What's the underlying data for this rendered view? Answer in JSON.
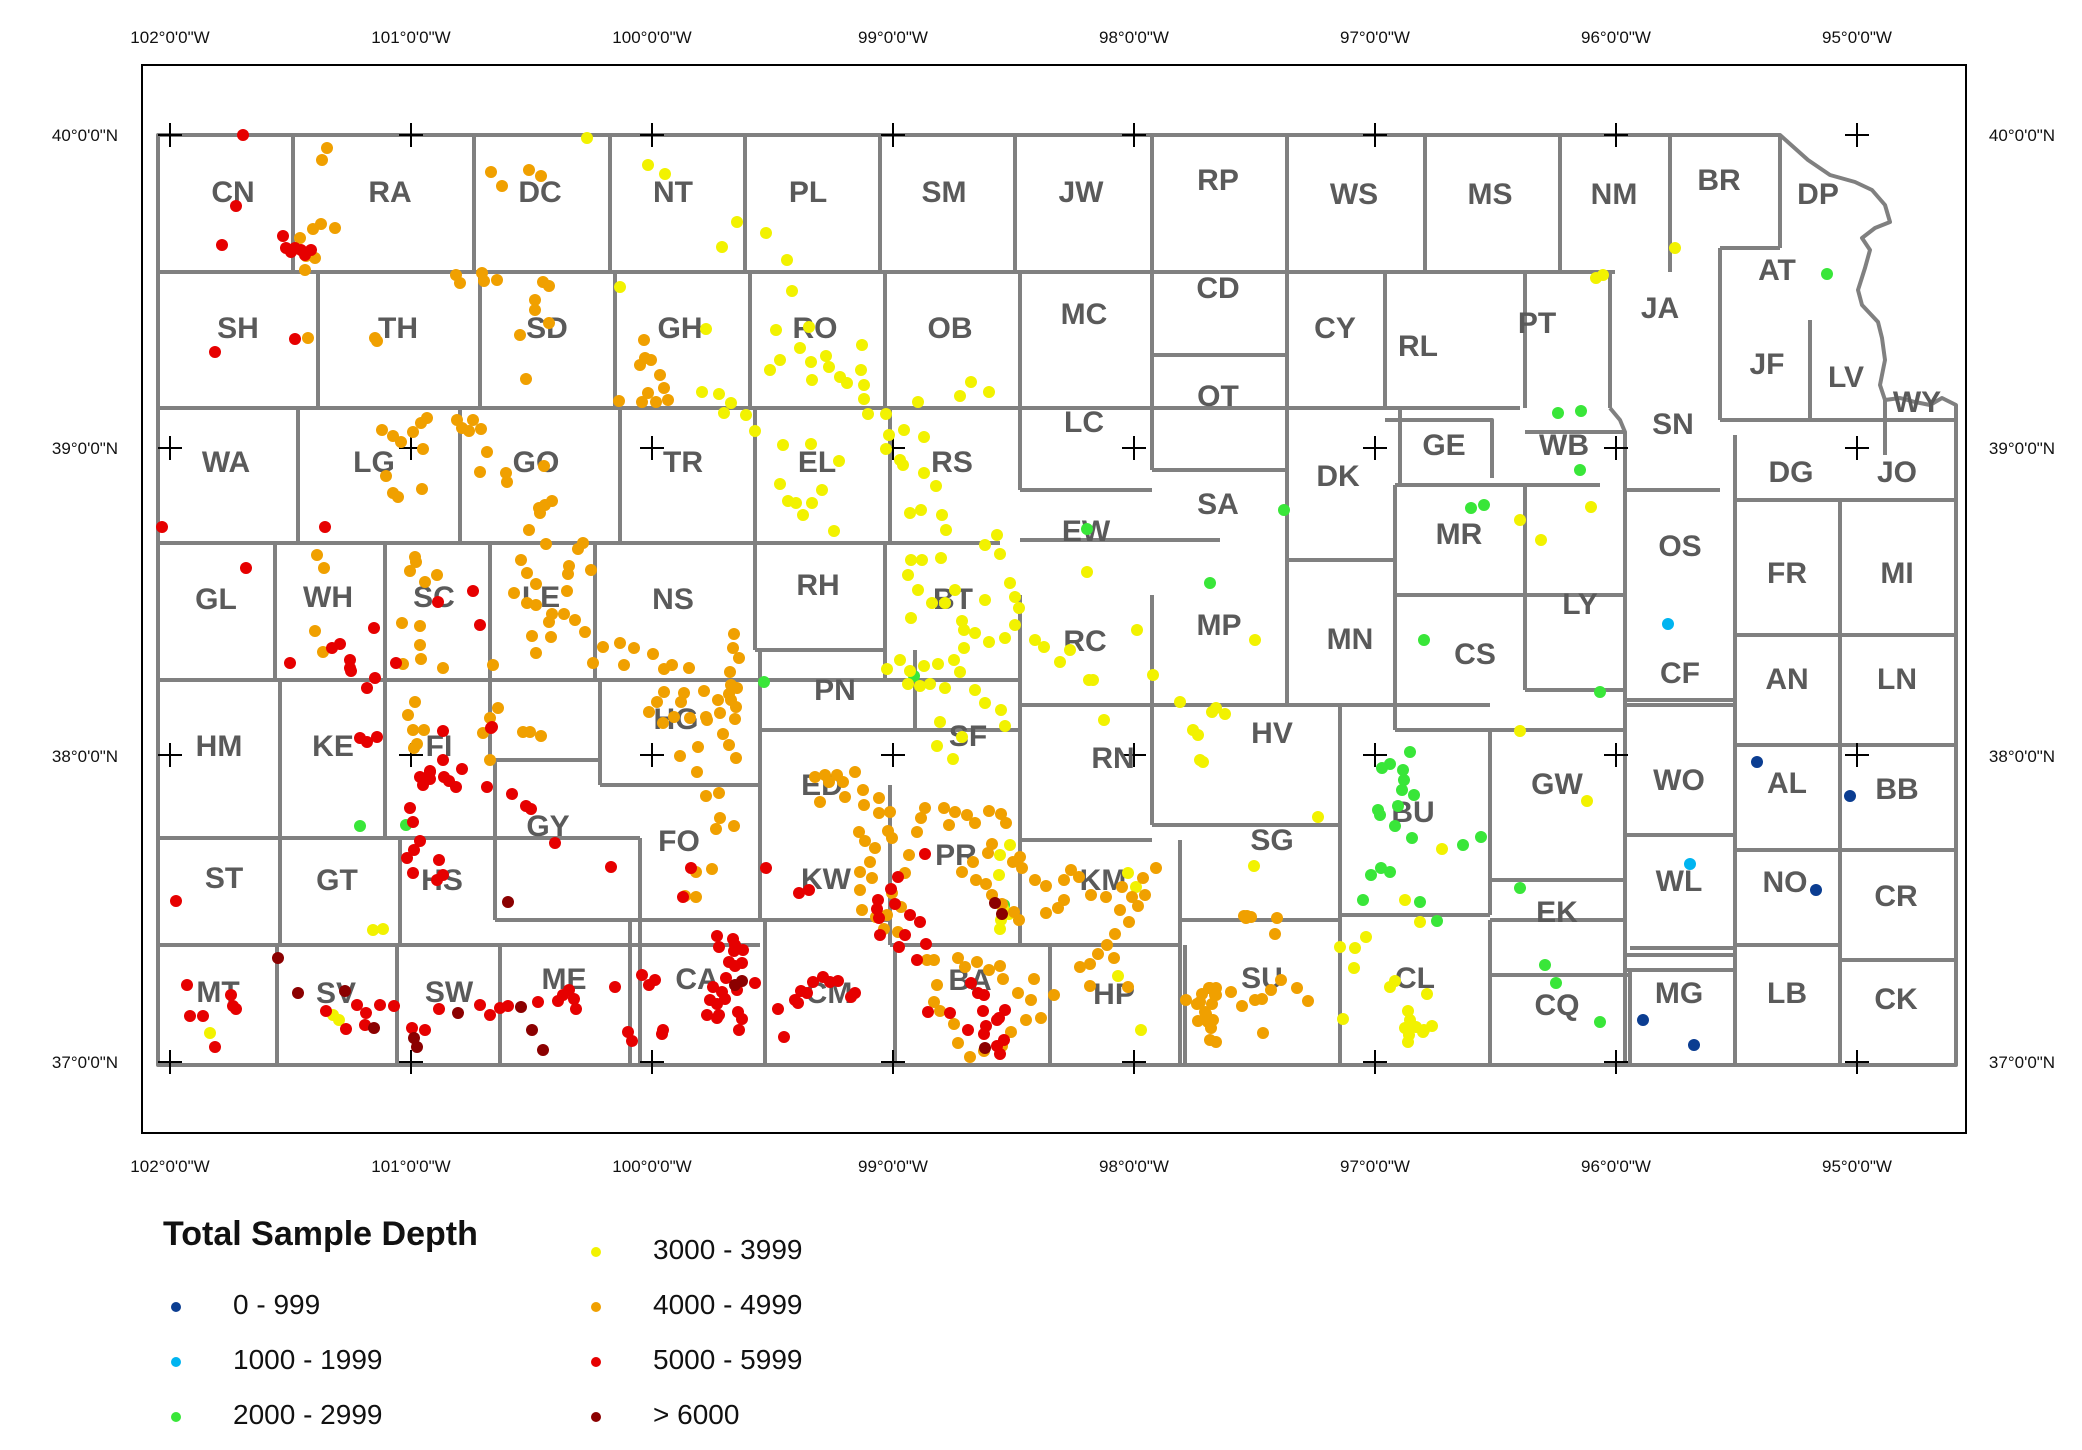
{
  "map": {
    "longitude_ticks": [
      "102°0'0\"W",
      "101°0'0\"W",
      "100°0'0\"W",
      "99°0'0\"W",
      "98°0'0\"W",
      "97°0'0\"W",
      "96°0'0\"W",
      "95°0'0\"W"
    ],
    "latitude_ticks": [
      "40°0'0\"N",
      "39°0'0\"N",
      "38°0'0\"N",
      "37°0'0\"N"
    ],
    "county_line_color": "#808080",
    "counties": [
      "CN",
      "RA",
      "DC",
      "NT",
      "PL",
      "SM",
      "JW",
      "RP",
      "WS",
      "MS",
      "NM",
      "BR",
      "DP",
      "SH",
      "TH",
      "SD",
      "GH",
      "RO",
      "OB",
      "MC",
      "CD",
      "CY",
      "RL",
      "PT",
      "JA",
      "AT",
      "JF",
      "LV",
      "WY",
      "WA",
      "LG",
      "GO",
      "TR",
      "EL",
      "RS",
      "LC",
      "OT",
      "GE",
      "WB",
      "SN",
      "DG",
      "JO",
      "EW",
      "SA",
      "DK",
      "MR",
      "OS",
      "FR",
      "MI",
      "GL",
      "WH",
      "SC",
      "LE",
      "NS",
      "RH",
      "BT",
      "RC",
      "MP",
      "MN",
      "CS",
      "LY",
      "CF",
      "AN",
      "LN",
      "HM",
      "KE",
      "FI",
      "HG",
      "PN",
      "SF",
      "RN",
      "HV",
      "BU",
      "GW",
      "WO",
      "AL",
      "BB",
      "GY",
      "ED",
      "ST",
      "GT",
      "HS",
      "FO",
      "KW",
      "PR",
      "KM",
      "SG",
      "EK",
      "WL",
      "NO",
      "CR",
      "MT",
      "SV",
      "SW",
      "ME",
      "CA",
      "CM",
      "BA",
      "HP",
      "SU",
      "CL",
      "CQ",
      "MG",
      "LB",
      "CK"
    ]
  },
  "legend": {
    "title": "Total Sample Depth",
    "classes": [
      {
        "label": "0 - 999",
        "color": "#0b3d91"
      },
      {
        "label": "1000 - 1999",
        "color": "#00b4f0"
      },
      {
        "label": "2000 - 2999",
        "color": "#39e639"
      },
      {
        "label": "3000 - 3999",
        "color": "#f2f200"
      },
      {
        "label": "4000 - 4999",
        "color": "#f0a000"
      },
      {
        "label": "5000 - 5999",
        "color": "#e60000"
      },
      {
        "label": "> 6000",
        "color": "#8b0000"
      }
    ]
  }
}
